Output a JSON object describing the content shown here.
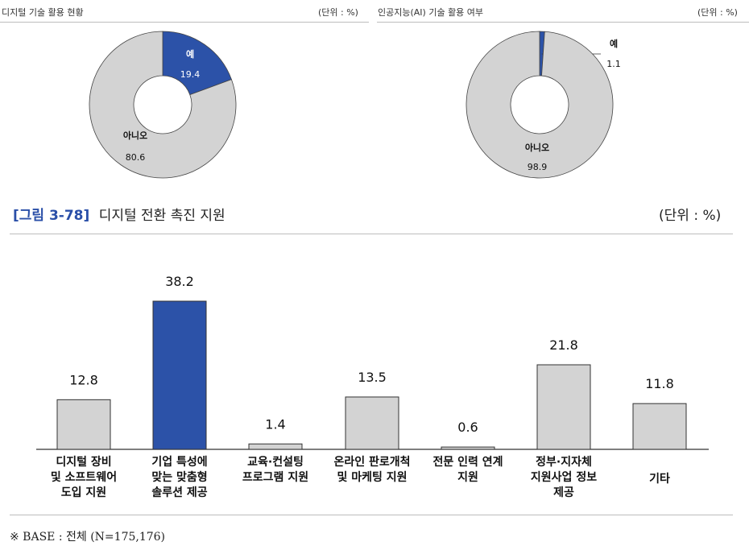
{
  "pie_left": {
    "title": "디지털 기술 활용 현황",
    "unit": "(단위 : %)"
  },
  "pie_right": {
    "title": "인공지능(AI) 기술 활용 여부",
    "unit": "(단위 : %)"
  },
  "bar_section": {
    "fig_label": "[그림 3-78]",
    "title": "디지털 전환 촉진 지원",
    "unit": "(단위 : %)"
  },
  "footnote": "※ BASE : 전체 (N=175,176)",
  "colors": {
    "highlight": "#2c52a8",
    "base": "#d3d3d3",
    "outline": "#333333"
  },
  "chart_data": [
    {
      "type": "pie",
      "title": "디지털 기술 활용 현황",
      "slices": [
        {
          "label": "예",
          "value": 19.4,
          "value_text": "19.4",
          "color": "#2c52a8"
        },
        {
          "label": "아니오",
          "value": 80.6,
          "value_text": "80.6",
          "color": "#d3d3d3"
        }
      ]
    },
    {
      "type": "pie",
      "title": "인공지능(AI) 기술 활용 여부",
      "slices": [
        {
          "label": "예",
          "value": 1.1,
          "value_text": "1.1",
          "color": "#2c52a8"
        },
        {
          "label": "아니오",
          "value": 98.9,
          "value_text": "98.9",
          "color": "#d3d3d3"
        }
      ]
    },
    {
      "type": "bar",
      "title": "디지털 전환 촉진 지원",
      "categories": [
        [
          "디지털 장비",
          "및 소프트웨어",
          "도입 지원"
        ],
        [
          "기업 특성에",
          "맞는 맞춤형",
          "솔루션 제공"
        ],
        [
          "교육·컨설팅",
          "프로그램 지원"
        ],
        [
          "온라인 판로개척",
          "및 마케팅 지원"
        ],
        [
          "전문 인력 연계",
          "지원"
        ],
        [
          "정부·지자체",
          "지원사업 정보",
          "제공"
        ],
        [
          "기타"
        ]
      ],
      "values": [
        12.8,
        38.2,
        1.4,
        13.5,
        0.6,
        21.8,
        11.8
      ],
      "value_texts": [
        "12.8",
        "38.2",
        "1.4",
        "13.5",
        "0.6",
        "21.8",
        "11.8"
      ],
      "highlight_index": 1
    }
  ]
}
